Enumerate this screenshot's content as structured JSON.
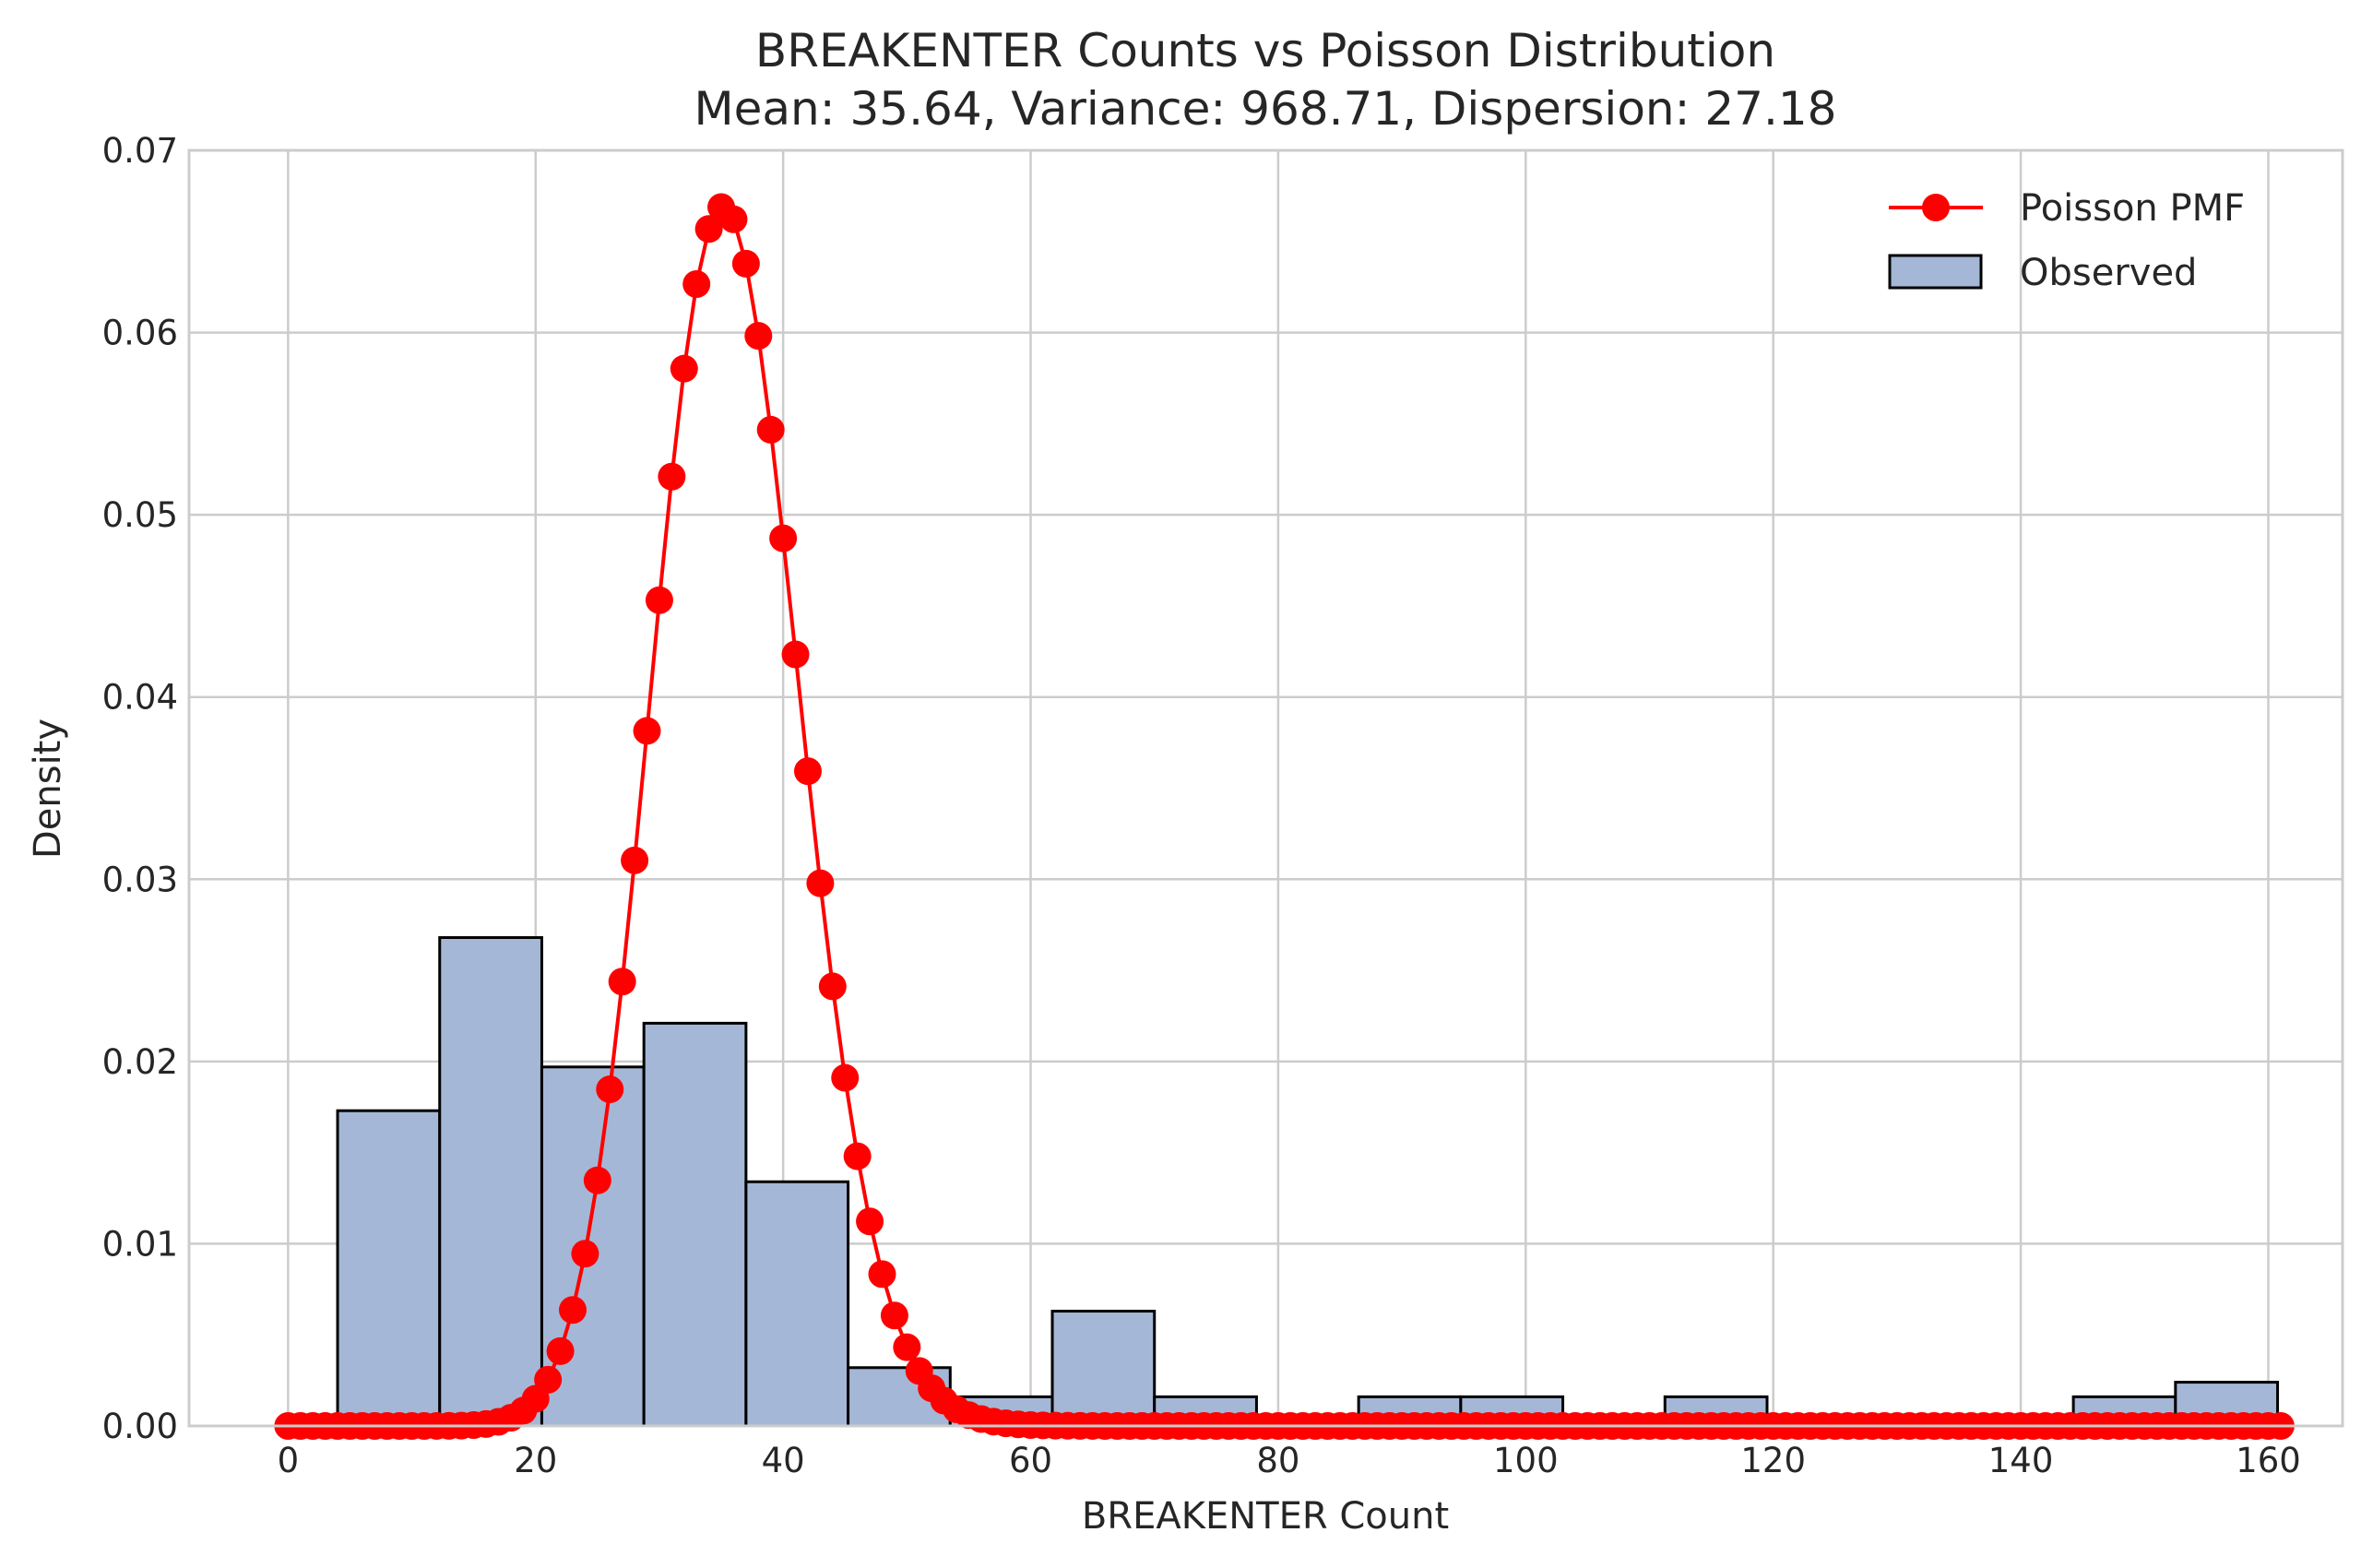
{
  "chart_data": {
    "type": "bar",
    "title": "BREAKENTER Counts vs Poisson Distribution",
    "subtitle": "Mean: 35.64, Variance: 968.71, Dispersion: 27.18",
    "xlabel": "BREAKENTER Count",
    "ylabel": "Density",
    "xlim": [
      -8,
      166
    ],
    "ylim": [
      0,
      0.07
    ],
    "grid": true,
    "legend_position": "top-right",
    "x_ticks": [
      "0",
      "20",
      "40",
      "60",
      "80",
      "100",
      "120",
      "140",
      "160"
    ],
    "y_ticks": [
      "0.00",
      "0.01",
      "0.02",
      "0.03",
      "0.04",
      "0.05",
      "0.06",
      "0.07"
    ],
    "colors": {
      "bars": "#a5b7d6",
      "bar_edge": "#000000",
      "line": "#ff0000",
      "grid": "#cccccc",
      "background": "#ffffff"
    },
    "series": [
      {
        "name": "Observed",
        "type": "histogram",
        "bin_edges": [
          4,
          12.25,
          20.5,
          28.75,
          37,
          45.25,
          53.5,
          61.75,
          70,
          78.25,
          86.5,
          94.75,
          103,
          111.25,
          119.5,
          127.75,
          136,
          144.25,
          152.5,
          160.75
        ],
        "values": [
          0.0173,
          0.0268,
          0.0197,
          0.0221,
          0.0134,
          0.0032,
          0.0016,
          0.0063,
          0.0016,
          0.0,
          0.0016,
          0.0016,
          0.0,
          0.0016,
          0.0,
          0.0,
          0.0,
          0.0016,
          0.0024
        ]
      },
      {
        "name": "Poisson PMF",
        "type": "line",
        "mean": 35.64,
        "x_range": [
          0,
          161
        ]
      }
    ]
  }
}
